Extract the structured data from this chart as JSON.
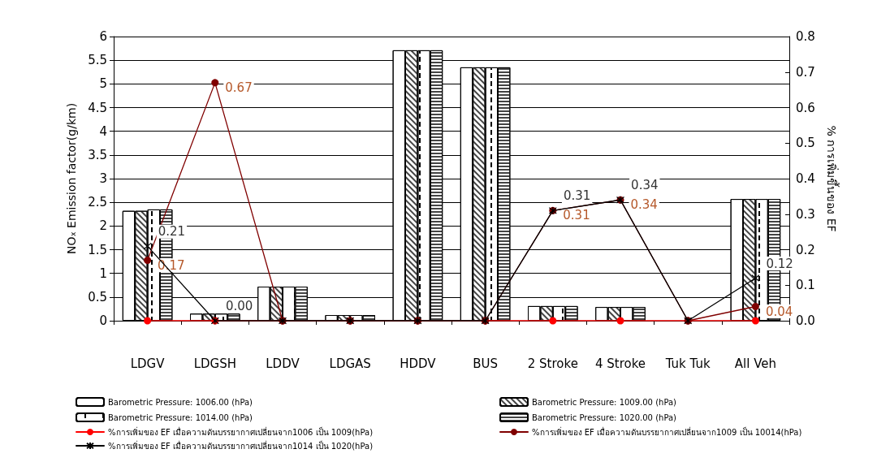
{
  "chart_data": {
    "type": "bar",
    "categories": [
      "LDGV",
      "LDGSH",
      "LDDV",
      "LDGAS",
      "HDDV",
      "BUS",
      "2 Stroke",
      "4 Stroke",
      "Tuk Tuk",
      "All Veh"
    ],
    "ylabel": "NOₓ Emission factor(g/km)",
    "y2label": "% การเพิ่มขึ้นของ EF",
    "ylim": [
      0,
      6
    ],
    "yticks": [
      0,
      0.5,
      1,
      1.5,
      2,
      2.5,
      3,
      3.5,
      4,
      4.5,
      5,
      5.5,
      6
    ],
    "y2lim": [
      0,
      0.8
    ],
    "y2ticks": [
      {
        "value": 0,
        "label": "0.0"
      },
      0.1,
      0.2,
      0.3,
      0.4,
      0.5,
      0.6,
      0.7,
      0.8
    ],
    "grid": "y",
    "legend": "bottom",
    "line_style": "solid",
    "series": [
      {
        "name": "Barometric Pressure: 1006.00 (hPa)",
        "color": "#ffffff",
        "values": [
          2.32,
          0.15,
          0.72,
          0.12,
          5.71,
          5.35,
          0.31,
          0.29,
          0,
          2.57
        ]
      },
      {
        "name": "Barometric Pressure: 1009.00 (hPa)",
        "color": "#ffffff",
        "values": [
          2.32,
          0.15,
          0.72,
          0.12,
          5.71,
          5.35,
          0.31,
          0.29,
          0,
          2.57
        ]
      },
      {
        "name": "Barometric Pressure: 1014.00 (hPa)",
        "color": "#ffffff",
        "values": [
          2.35,
          0.15,
          0.72,
          0.12,
          5.71,
          5.35,
          0.31,
          0.29,
          0,
          2.57
        ]
      },
      {
        "name": "Barometric Pressure: 1020.00 (hPa)",
        "color": "#ffffff",
        "values": [
          2.35,
          0.15,
          0.72,
          0.12,
          5.71,
          5.35,
          0.31,
          0.29,
          0,
          2.57
        ]
      },
      {
        "name": "%การเพิ่มของ EF เมื่อความดันบรรยากาศเปลี่ยนจาก1006 เป็น 1009(hPa)",
        "type": "line",
        "axis": "y2",
        "marker": "circle",
        "color": "#ff0000",
        "values": [
          0,
          0,
          0,
          0,
          0,
          0,
          0,
          0,
          0,
          0
        ]
      },
      {
        "name": "%การเพิ่มของ EF เมื่อความดันบรรยากาศเปลี่ยนจาก1009 เป็น 10014(hPa)",
        "type": "line",
        "axis": "y2",
        "marker": "circle",
        "color": "#800000",
        "values": [
          0.17,
          0.67,
          0,
          0,
          0,
          0,
          0.31,
          0.34,
          0,
          0.04
        ],
        "value_labels": [
          "0.17",
          "0.67",
          null,
          null,
          null,
          null,
          "0.31",
          "0.34",
          null,
          "0.04"
        ]
      },
      {
        "name": "%การเพิ่มของ EF เมื่อความดันบรรยากาศเปลี่ยนจาก1014 เป็น 1020(hPa)",
        "type": "line",
        "axis": "y2",
        "marker": "cross",
        "color": "#000000",
        "values": [
          0.21,
          0,
          0,
          0,
          0,
          0,
          0.31,
          0.34,
          0,
          0.12
        ],
        "value_labels": [
          "0.21",
          "0.00",
          null,
          null,
          null,
          null,
          "0.31",
          "0.34",
          null,
          "0.12"
        ]
      }
    ]
  }
}
